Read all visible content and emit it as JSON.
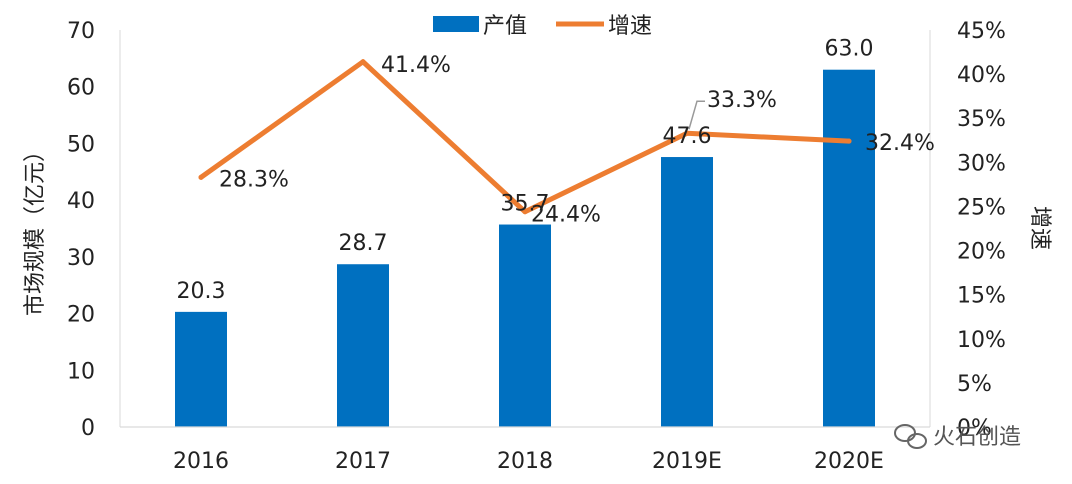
{
  "chart_data": {
    "type": "bar",
    "title": "",
    "categories": [
      "2016",
      "2017",
      "2018",
      "2019E",
      "2020E"
    ],
    "series": [
      {
        "name": "产值",
        "type": "bar",
        "axis": "left",
        "color": "#0070C0",
        "values": [
          20.3,
          28.7,
          35.7,
          47.6,
          63.0
        ],
        "labels": [
          "20.3",
          "28.7",
          "35.7",
          "47.6",
          "63.0"
        ]
      },
      {
        "name": "增速",
        "type": "line",
        "axis": "right",
        "color": "#ED7D31",
        "values": [
          28.3,
          41.4,
          24.4,
          33.3,
          32.4
        ],
        "labels": [
          "28.3%",
          "41.4%",
          "24.4%",
          "33.3%",
          "32.4%"
        ]
      }
    ],
    "ylabel": "市场规模（亿元）",
    "y2label": "增速",
    "ylim": [
      0,
      70
    ],
    "yticks": [
      "0",
      "10",
      "20",
      "30",
      "40",
      "50",
      "60",
      "70"
    ],
    "y2lim": [
      0,
      45
    ],
    "y2ticks": [
      "0%",
      "5%",
      "10%",
      "15%",
      "20%",
      "25%",
      "30%",
      "35%",
      "40%",
      "45%"
    ],
    "legend": "top-center",
    "grid": false
  },
  "watermark": {
    "text": "火石创造",
    "icon": "wechat-icon"
  }
}
